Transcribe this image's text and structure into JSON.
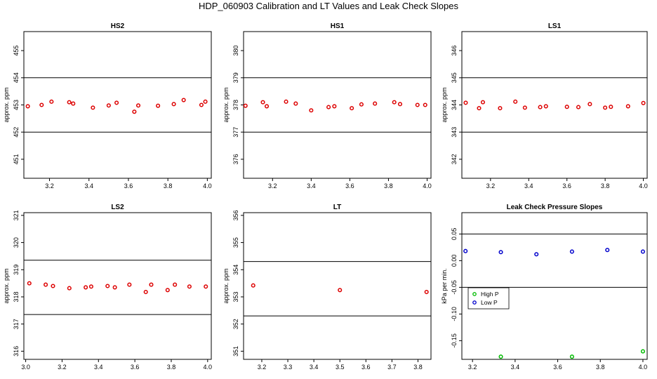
{
  "title": "HDP_060903  Calibration and LT Values and Leak Check Slopes",
  "chart_data": [
    {
      "type": "scatter",
      "title": "HS2",
      "ylabel": "approx. ppm",
      "xlim": [
        3.07,
        4.02
      ],
      "ylim": [
        450.3,
        455.7
      ],
      "xticks": [
        3.2,
        3.4,
        3.6,
        3.8,
        4.0
      ],
      "yticks": [
        451,
        452,
        453,
        454,
        455
      ],
      "hlines": [
        454.0,
        452.0
      ],
      "series": [
        {
          "color": "#dd0000",
          "x": [
            3.09,
            3.16,
            3.21,
            3.3,
            3.32,
            3.42,
            3.5,
            3.54,
            3.63,
            3.65,
            3.75,
            3.83,
            3.88,
            3.97,
            3.99
          ],
          "y": [
            452.95,
            453.0,
            453.12,
            453.1,
            453.05,
            452.9,
            452.98,
            453.08,
            452.75,
            452.98,
            452.97,
            453.03,
            453.18,
            453.0,
            453.12
          ]
        }
      ]
    },
    {
      "type": "scatter",
      "title": "HS1",
      "ylabel": "approx. ppm",
      "xlim": [
        3.05,
        4.02
      ],
      "ylim": [
        375.3,
        380.7
      ],
      "xticks": [
        3.2,
        3.4,
        3.6,
        3.8,
        4.0
      ],
      "yticks": [
        376,
        377,
        378,
        379,
        380
      ],
      "hlines": [
        379.0,
        377.0
      ],
      "series": [
        {
          "color": "#dd0000",
          "x": [
            3.06,
            3.15,
            3.17,
            3.27,
            3.32,
            3.4,
            3.49,
            3.52,
            3.61,
            3.66,
            3.73,
            3.83,
            3.86,
            3.95,
            3.99
          ],
          "y": [
            377.97,
            378.1,
            377.95,
            378.12,
            378.05,
            377.8,
            377.92,
            377.95,
            377.88,
            378.02,
            378.05,
            378.1,
            378.03,
            378.0,
            378.0
          ]
        }
      ]
    },
    {
      "type": "scatter",
      "title": "LS1",
      "ylabel": "approx. ppm",
      "xlim": [
        3.05,
        4.02
      ],
      "ylim": [
        341.3,
        346.7
      ],
      "xticks": [
        3.2,
        3.4,
        3.6,
        3.8,
        4.0
      ],
      "yticks": [
        342,
        343,
        344,
        345,
        346
      ],
      "hlines": [
        345.0,
        343.0
      ],
      "series": [
        {
          "color": "#dd0000",
          "x": [
            3.07,
            3.14,
            3.16,
            3.25,
            3.33,
            3.38,
            3.46,
            3.49,
            3.6,
            3.66,
            3.72,
            3.8,
            3.83,
            3.92,
            4.0
          ],
          "y": [
            344.08,
            343.88,
            344.1,
            343.88,
            344.12,
            343.9,
            343.92,
            343.95,
            343.93,
            343.92,
            344.03,
            343.9,
            343.93,
            343.95,
            344.07
          ]
        }
      ]
    },
    {
      "type": "scatter",
      "title": "LS2",
      "ylabel": "approx. ppm",
      "xlim": [
        2.99,
        4.02
      ],
      "ylim": [
        315.7,
        321.1
      ],
      "xticks": [
        3.0,
        3.2,
        3.4,
        3.6,
        3.8,
        4.0
      ],
      "yticks": [
        316,
        317,
        318,
        319,
        320,
        321
      ],
      "hlines": [
        319.35,
        317.35
      ],
      "series": [
        {
          "color": "#dd0000",
          "x": [
            3.02,
            3.11,
            3.15,
            3.24,
            3.33,
            3.36,
            3.45,
            3.49,
            3.57,
            3.66,
            3.69,
            3.78,
            3.82,
            3.9,
            3.99
          ],
          "y": [
            318.5,
            318.45,
            318.4,
            318.32,
            318.35,
            318.38,
            318.4,
            318.35,
            318.45,
            318.18,
            318.45,
            318.25,
            318.45,
            318.38,
            318.38
          ]
        }
      ]
    },
    {
      "type": "scatter",
      "title": "LT",
      "ylabel": "approx. ppm",
      "xlim": [
        3.13,
        3.85
      ],
      "ylim": [
        350.7,
        356.1
      ],
      "xticks": [
        3.2,
        3.3,
        3.4,
        3.5,
        3.6,
        3.7,
        3.8
      ],
      "yticks": [
        351,
        352,
        353,
        354,
        355,
        356
      ],
      "hlines": [
        354.3,
        352.3
      ],
      "series": [
        {
          "color": "#dd0000",
          "x": [
            3.167,
            3.5,
            3.833
          ],
          "y": [
            353.42,
            353.25,
            353.18
          ]
        }
      ]
    },
    {
      "type": "scatter",
      "title": "Leak Check Pressure Slopes",
      "ylabel": "kPa per min.",
      "xlim": [
        3.15,
        4.02
      ],
      "ylim": [
        -0.185,
        0.09
      ],
      "xticks": [
        3.2,
        3.4,
        3.6,
        3.8,
        4.0
      ],
      "yticks": [
        0.05,
        0.0,
        -0.05,
        -0.1,
        -0.15
      ],
      "ytick_labels": [
        "0.05",
        "0.00",
        "-0.05",
        "-0.10",
        "-0.15"
      ],
      "hlines": [
        0.05,
        -0.05
      ],
      "legend": {
        "position": "left",
        "entries": [
          "High P",
          "Low P"
        ]
      },
      "series": [
        {
          "name": "High P",
          "color": "#00bb00",
          "x": [
            3.333,
            3.667,
            4.0
          ],
          "y": [
            -0.18,
            -0.18,
            -0.17
          ]
        },
        {
          "name": "Low P",
          "color": "#0000cc",
          "x": [
            3.167,
            3.333,
            3.5,
            3.667,
            3.833,
            4.0
          ],
          "y": [
            0.018,
            0.016,
            0.012,
            0.017,
            0.02,
            0.017
          ]
        }
      ]
    }
  ]
}
